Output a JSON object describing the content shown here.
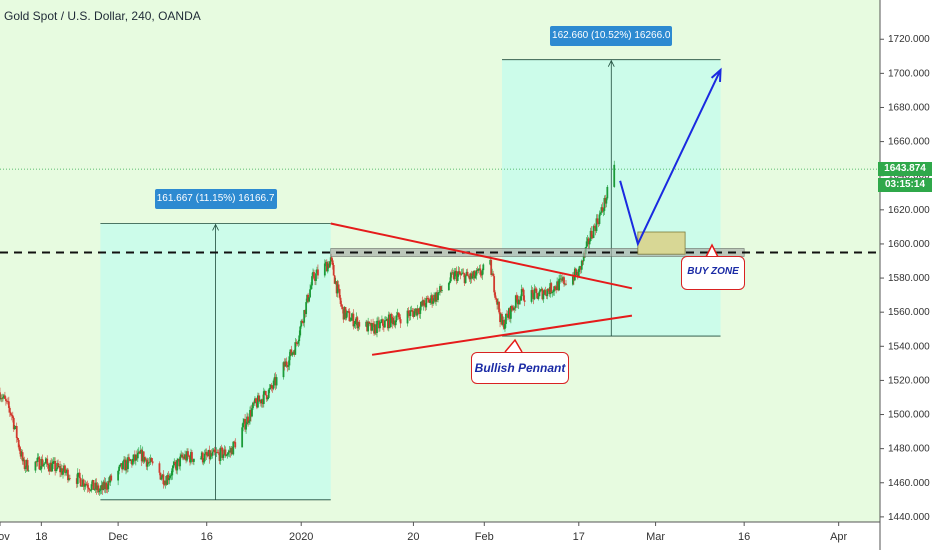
{
  "title": "Gold Spot / U.S. Dollar, 240, OANDA",
  "colors": {
    "background": "#e7fbe0",
    "measure_fill": "#c7fbeb",
    "measure_line": "#1d4a3a",
    "candle_up": "#1b9b38",
    "candle_down": "#d13b2f",
    "trendline": "#e51b1b",
    "support_line": "#111111",
    "projection": "#1a2ae0",
    "buy_zone": "#d8d795",
    "price_tag": "#2fa84a",
    "callout": "#2d8ad1"
  },
  "price_labels": {
    "last_price": "1643.874",
    "countdown": "03:15:14"
  },
  "measurements": [
    {
      "text": "161.667 (11.15%) 16166.7"
    },
    {
      "text": "162.660 (10.52%) 16266.0"
    }
  ],
  "annotations": {
    "pennant": "Bullish Pennant",
    "buy_zone": "BUY ZONE"
  },
  "chart_data": {
    "type": "candlestick",
    "symbol": "XAUUSD",
    "interval": "240",
    "source": "OANDA",
    "y_ticks": [
      1440,
      1460,
      1480,
      1500,
      1520,
      1540,
      1560,
      1580,
      1600,
      1620,
      1640,
      1660,
      1680,
      1700,
      1720
    ],
    "y_tick_labels": [
      "1440.000",
      "1460.000",
      "1480.000",
      "1500.000",
      "1520.000",
      "1540.000",
      "1560.000",
      "1580.000",
      "1600.000",
      "1620.000",
      "1640.000",
      "1660.000",
      "1680.000",
      "1700.000",
      "1720.000"
    ],
    "ylim": [
      1437,
      1743
    ],
    "x_ticks": [
      {
        "label": "Nov",
        "date": "2019-11-11"
      },
      {
        "label": "18",
        "date": "2019-11-18"
      },
      {
        "label": "Dec",
        "date": "2019-12-01"
      },
      {
        "label": "16",
        "date": "2019-12-16"
      },
      {
        "label": "2020",
        "date": "2020-01-01"
      },
      {
        "label": "20",
        "date": "2020-01-20"
      },
      {
        "label": "Feb",
        "date": "2020-02-01"
      },
      {
        "label": "17",
        "date": "2020-02-17"
      },
      {
        "label": "Mar",
        "date": "2020-03-01"
      },
      {
        "label": "16",
        "date": "2020-03-16"
      },
      {
        "label": "Apr",
        "date": "2020-04-01"
      }
    ],
    "xlim": [
      "2019-11-11",
      "2020-04-08"
    ],
    "price_path": [
      {
        "date": "2019-11-11",
        "price": 1513
      },
      {
        "date": "2019-11-13",
        "price": 1500
      },
      {
        "date": "2019-11-15",
        "price": 1470
      },
      {
        "date": "2019-11-18",
        "price": 1472
      },
      {
        "date": "2019-11-21",
        "price": 1468
      },
      {
        "date": "2019-11-25",
        "price": 1461
      },
      {
        "date": "2019-11-28",
        "price": 1455
      },
      {
        "date": "2019-12-02",
        "price": 1470
      },
      {
        "date": "2019-12-05",
        "price": 1476
      },
      {
        "date": "2019-12-09",
        "price": 1462
      },
      {
        "date": "2019-12-12",
        "price": 1475
      },
      {
        "date": "2019-12-16",
        "price": 1475
      },
      {
        "date": "2019-12-20",
        "price": 1478
      },
      {
        "date": "2019-12-24",
        "price": 1505
      },
      {
        "date": "2019-12-27",
        "price": 1515
      },
      {
        "date": "2019-12-31",
        "price": 1540
      },
      {
        "date": "2020-01-03",
        "price": 1580
      },
      {
        "date": "2020-01-06",
        "price": 1590
      },
      {
        "date": "2020-01-08",
        "price": 1560
      },
      {
        "date": "2020-01-10",
        "price": 1555
      },
      {
        "date": "2020-01-13",
        "price": 1550
      },
      {
        "date": "2020-01-16",
        "price": 1555
      },
      {
        "date": "2020-01-20",
        "price": 1560
      },
      {
        "date": "2020-01-24",
        "price": 1570
      },
      {
        "date": "2020-01-27",
        "price": 1582
      },
      {
        "date": "2020-01-30",
        "price": 1580
      },
      {
        "date": "2020-02-02",
        "price": 1587
      },
      {
        "date": "2020-02-04",
        "price": 1552
      },
      {
        "date": "2020-02-07",
        "price": 1570
      },
      {
        "date": "2020-02-10",
        "price": 1570
      },
      {
        "date": "2020-02-13",
        "price": 1575
      },
      {
        "date": "2020-02-17",
        "price": 1583
      },
      {
        "date": "2020-02-19",
        "price": 1605
      },
      {
        "date": "2020-02-21",
        "price": 1620
      },
      {
        "date": "2020-02-23",
        "price": 1643
      }
    ],
    "drawings": {
      "support_level": 1595,
      "pennant_upper": [
        {
          "date": "2020-01-06",
          "price": 1612
        },
        {
          "date": "2020-02-26",
          "price": 1574
        }
      ],
      "pennant_lower": [
        {
          "date": "2020-01-13",
          "price": 1535
        },
        {
          "date": "2020-02-26",
          "price": 1558
        }
      ],
      "measure_1": {
        "from": "2019-11-28",
        "to": "2020-01-06",
        "low": 1450,
        "high": 1612
      },
      "measure_2": {
        "from": "2020-02-04",
        "to": "2020-03-12",
        "low": 1546,
        "high": 1708
      },
      "buy_zone": {
        "from": "2020-02-27",
        "to": "2020-03-06",
        "low": 1594,
        "high": 1607
      },
      "projection": [
        {
          "date": "2020-02-24",
          "price": 1637
        },
        {
          "date": "2020-02-27",
          "price": 1600
        },
        {
          "date": "2020-03-12",
          "price": 1702
        }
      ]
    }
  }
}
